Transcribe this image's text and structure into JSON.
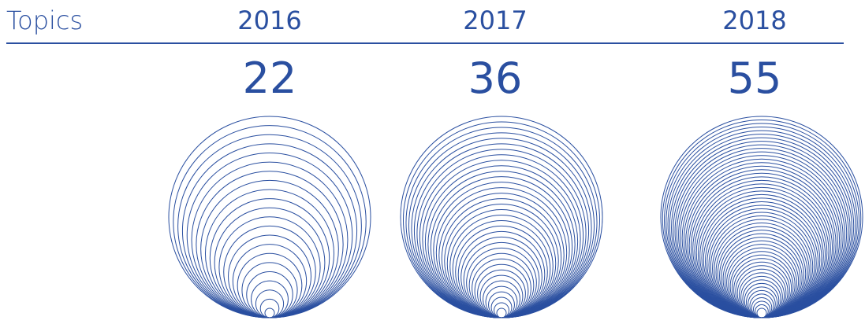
{
  "header": {
    "label": "Topics"
  },
  "colors": {
    "accent": "#2a4fa0",
    "background": "#ffffff"
  },
  "chart_data": {
    "type": "nested-circles",
    "title": "",
    "categories": [
      "2016",
      "2017",
      "2018"
    ],
    "values": [
      22,
      36,
      55
    ],
    "category_labels": [
      "2016",
      "2017",
      "2018"
    ],
    "value_labels": [
      "22",
      "36",
      "55"
    ],
    "encoding": "number of nested circles equals value",
    "grid": false
  }
}
